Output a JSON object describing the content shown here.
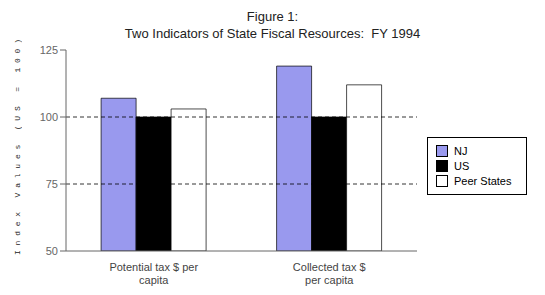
{
  "chart_data": {
    "type": "bar",
    "title": "Figure 1:\nTwo Indicators of State Fiscal Resources:  FY 1994",
    "categories": [
      "Potential tax $ per\ncapita",
      "Collected tax $\nper capita"
    ],
    "series": [
      {
        "name": "NJ",
        "color": "#9999ee",
        "values": [
          107,
          119
        ]
      },
      {
        "name": "US",
        "color": "#000000",
        "values": [
          100,
          100
        ]
      },
      {
        "name": "Peer States",
        "color": "#ffffff",
        "values": [
          103,
          112
        ]
      }
    ],
    "ylabel": "I n d e x   V a l u e s   ( U S   =   1 0 0 )",
    "ylim": [
      50,
      125
    ],
    "yticks": [
      50,
      75,
      100,
      125
    ],
    "reference_lines": [
      75,
      100
    ],
    "grid": false,
    "legend": "right"
  }
}
